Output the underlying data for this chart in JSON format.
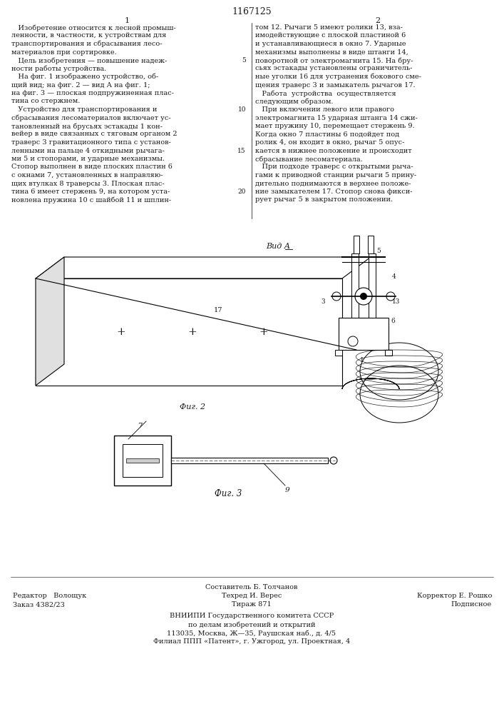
{
  "patent_number": "1167125",
  "col1_number": "1",
  "col2_number": "2",
  "col1_text": [
    "   Изобретение относится к лесной промыш-",
    "ленности, в частности, к устройствам для",
    "транспортирования и сбрасывания лесо-",
    "материалов при сортировке.",
    "   Цель изобретения — повышение надеж-",
    "ности работы устройства.",
    "   На фиг. 1 изображено устройство, об-",
    "щий вид; на фиг. 2 — вид А на фиг. 1;",
    "на фиг. 3 — плоская подпружиненная плас-",
    "тина со стержнем.",
    "   Устройство для транспортирования и",
    "сбрасывания лесоматериалов включает ус-",
    "тановленный на брусьях эстакады 1 кон-",
    "вейер в виде связанных с тяговым органом 2",
    "траверс 3 гравитационного типа с установ-",
    "ленными на пальце 4 откидными рычага-",
    "ми 5 и стопорами, и ударные механизмы.",
    "Стопор выполнен в виде плоских пластин 6",
    "с окнами 7, установленных в направляю-",
    "щих втулках 8 траверсы 3. Плоская плас-",
    "тина 6 имеет стержень 9, на котором уста-",
    "новлена пружина 10 с шайбой 11 и шплин-"
  ],
  "col2_text": [
    "том 12. Рычаги 5 имеют ролики 13, вза-",
    "имодействующие с плоской пластиной 6",
    "и устанавливающиеся в окно 7. Ударные",
    "механизмы выполнены в виде штанги 14,",
    "поворотной от электромагнита 15. На бру-",
    "сьях эстакады установлены ограничитель-",
    "ные уголки 16 для устранения бокового сме-",
    "щения траверс 3 и замыкатель рычагов 17.",
    "   Работа  устройства  осуществляется",
    "следующим образом.",
    "   При включении левого или правого",
    "электромагнита 15 ударная штанга 14 сжи-",
    "мает пружину 10, перемещает стержень 9.",
    "Когда окно 7 пластины 6 подойдет под",
    "ролик 4, он входит в окно, рычаг 5 опус-",
    "кается в нижнее положение и происходит",
    "сбрасывание лесоматериала.",
    "   При подходе траверс с открытыми рыча-",
    "гами к приводной станции рычаги 5 прину-",
    "дительно поднимаются в верхнее положе-",
    "ние замыкателем 17. Стопор снова фикси-",
    "рует рычаг 5 в закрытом положении."
  ],
  "line_numbers_left": [
    "",
    "",
    "",
    "",
    "5",
    "",
    "",
    "",
    "",
    "",
    "10",
    "",
    "",
    "",
    "",
    "15",
    "",
    "",
    "",
    "",
    "20"
  ],
  "fig2_label": "Вид А",
  "fig2_caption": "Фиг. 2",
  "fig3_caption": "Фиг. 3",
  "footer_editor": "Редактор   Волощук",
  "footer_composer": "Составитель Б. Толчанов",
  "footer_corrector": "Корректор Е. Рошко",
  "footer_order": "Заказ 4382/23",
  "footer_techred": "Техред И. Верес",
  "footer_podpisnoe": "Подписное",
  "footer_tirazh": "Тираж 871",
  "footer_vniip1": "ВНИИПИ Государственного комитета СССР",
  "footer_vniip2": "по делам изобретений и открытий",
  "footer_vniip3": "113035, Москва, Ж—35, Раушская наб., д. 4/5",
  "footer_vniip4": "Филиал ППП «Патент», г. Ужгород, ул. Проектная, 4",
  "bg_color": "#ffffff",
  "text_color": "#1a1a1a"
}
